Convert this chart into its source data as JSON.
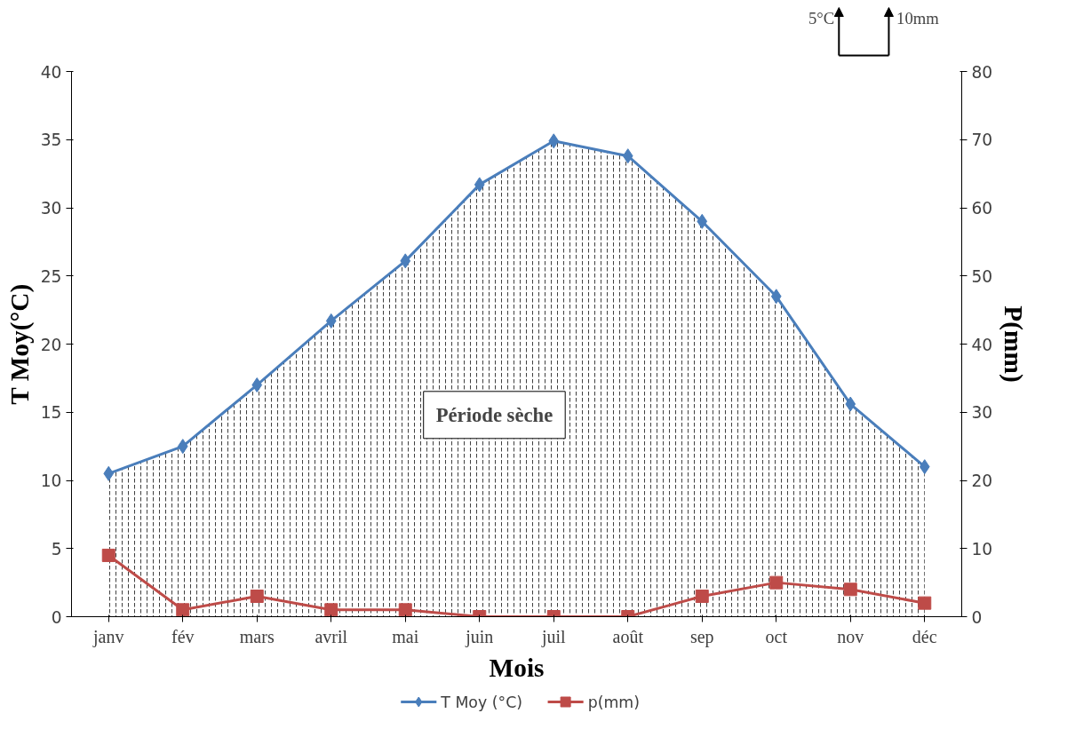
{
  "chart_data": {
    "type": "line",
    "categories": [
      "janv",
      "fév",
      "mars",
      "avril",
      "mai",
      "juin",
      "juil",
      "août",
      "sep",
      "oct",
      "nov",
      "déc"
    ],
    "xlabel": "Mois",
    "ylabel": "T Moy(°C)",
    "y2label": "P(mm)",
    "ylim": [
      0,
      40
    ],
    "yticks": [
      0,
      5,
      10,
      15,
      20,
      25,
      30,
      35,
      40
    ],
    "y2lim": [
      0,
      80
    ],
    "y2ticks": [
      0,
      10,
      20,
      30,
      40,
      50,
      60,
      70,
      80
    ],
    "series": [
      {
        "name": "T Moy (°C)",
        "type": "area",
        "color": "#4a7ebb",
        "marker": "diamond",
        "values": [
          10.5,
          12.5,
          17,
          21.7,
          26.1,
          31.7,
          34.9,
          33.8,
          29,
          23.5,
          15.6,
          11
        ]
      },
      {
        "name": "p(mm)",
        "color": "#be4b48",
        "marker": "square",
        "axis": "y2",
        "values": [
          9,
          1,
          3,
          1,
          1,
          0,
          0,
          0,
          3,
          5,
          4,
          2
        ]
      }
    ],
    "annotations": [
      "Période sèche",
      "5°C",
      "10mm"
    ],
    "legend": "bottom",
    "grid": false
  }
}
